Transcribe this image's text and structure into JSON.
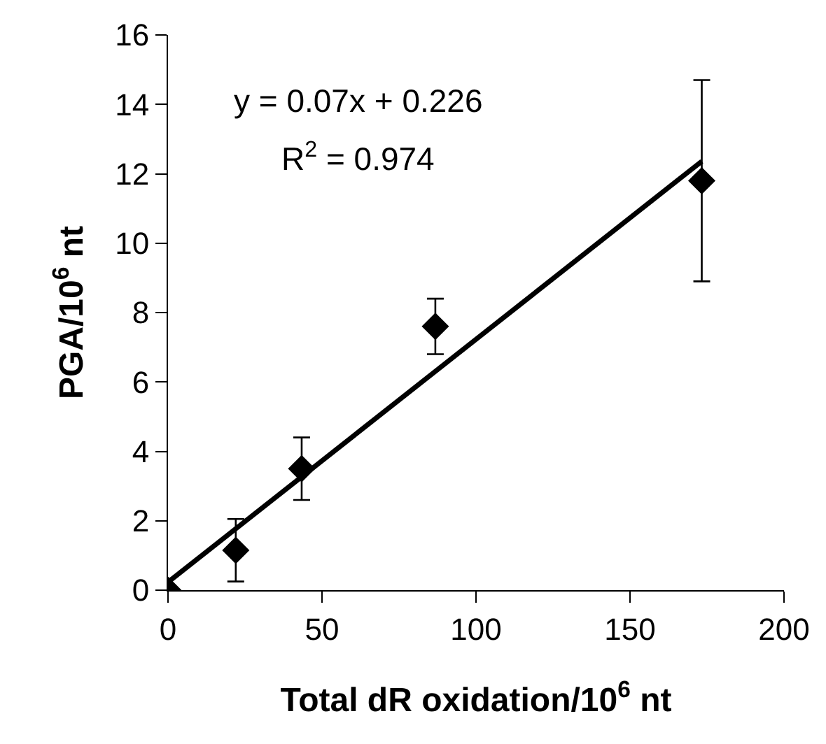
{
  "chart_data": {
    "type": "scatter",
    "xlabel": "Total dR oxidation/10$^{6}$ nt",
    "ylabel": "PGA/10$^{6}$ nt",
    "annotations": [
      "y = 0.07x + 0.226",
      "R$^{2}$ = 0.974"
    ],
    "xlim": [
      0,
      200
    ],
    "xticks": [
      0,
      50,
      100,
      150,
      200
    ],
    "ylim": [
      0,
      16
    ],
    "yticks": [
      0,
      2,
      4,
      6,
      8,
      10,
      12,
      14,
      16
    ],
    "grid": false,
    "marker": "diamond",
    "series": [
      {
        "color": "#000000",
        "x": [
          0,
          22,
          43.4,
          86.8,
          173.3
        ],
        "values": [
          0,
          1.15,
          3.5,
          7.6,
          11.8
        ],
        "errors": [
          null,
          0.9,
          0.9,
          0.8,
          2.9
        ]
      },
      {
        "type": "line",
        "color": "#000000",
        "x": [
          0,
          173.3
        ],
        "values": [
          0.23,
          12.36
        ],
        "marker": "none",
        "line_style": "solid"
      }
    ]
  }
}
